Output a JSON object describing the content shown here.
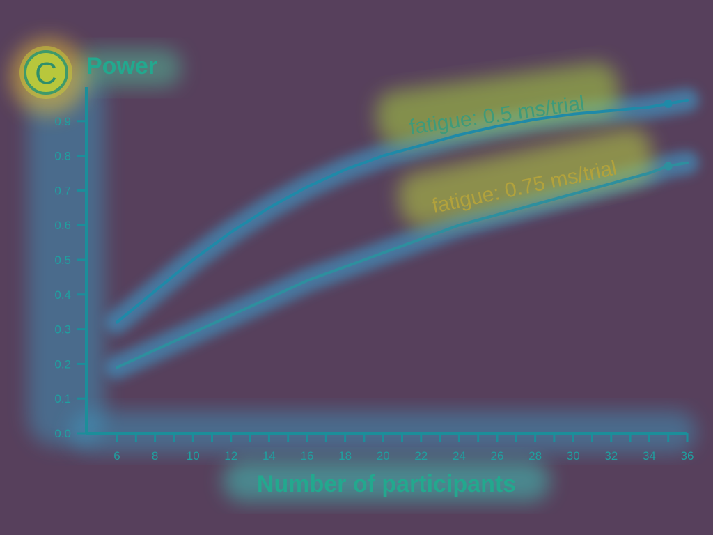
{
  "panel": {
    "letter": "C"
  },
  "chart_data": {
    "type": "line",
    "ylabel": "Power",
    "xlabel": "Number of participants",
    "xlim": [
      4.5,
      36
    ],
    "ylim": [
      0,
      1
    ],
    "x_ticks": [
      6,
      7,
      8,
      9,
      10,
      11,
      12,
      13,
      14,
      15,
      16,
      17,
      18,
      19,
      20,
      21,
      22,
      23,
      24,
      25,
      26,
      27,
      28,
      29,
      30,
      31,
      32,
      33,
      34,
      35,
      36
    ],
    "x_tick_labels": [
      "6",
      "8",
      "10",
      "12",
      "14",
      "16",
      "18",
      "20",
      "22",
      "24",
      "26",
      "28",
      "30",
      "32",
      "34",
      "36"
    ],
    "y_ticks": [
      "0.0",
      "0.1",
      "0.2",
      "0.3",
      "0.4",
      "0.5",
      "0.6",
      "0.7",
      "0.8",
      "0.9"
    ],
    "series": [
      {
        "name": "fatigue: 0.5 ms/trial",
        "color": "#1f8aa8",
        "x": [
          6,
          8,
          10,
          12,
          14,
          16,
          18,
          20,
          22,
          24,
          26,
          28,
          30,
          32,
          34,
          35,
          36
        ],
        "values": [
          0.32,
          0.41,
          0.5,
          0.58,
          0.65,
          0.71,
          0.76,
          0.8,
          0.83,
          0.86,
          0.885,
          0.905,
          0.92,
          0.93,
          0.94,
          0.95,
          0.96
        ],
        "marker_at": 35
      },
      {
        "name": "fatigue: 0.75 ms/trial",
        "color": "#2e8f9e",
        "x": [
          6,
          8,
          10,
          12,
          14,
          16,
          18,
          20,
          22,
          24,
          26,
          28,
          30,
          32,
          34,
          35,
          36
        ],
        "values": [
          0.19,
          0.24,
          0.29,
          0.34,
          0.39,
          0.44,
          0.48,
          0.52,
          0.56,
          0.6,
          0.63,
          0.66,
          0.69,
          0.72,
          0.75,
          0.77,
          0.78
        ],
        "marker_at": 35
      }
    ]
  }
}
